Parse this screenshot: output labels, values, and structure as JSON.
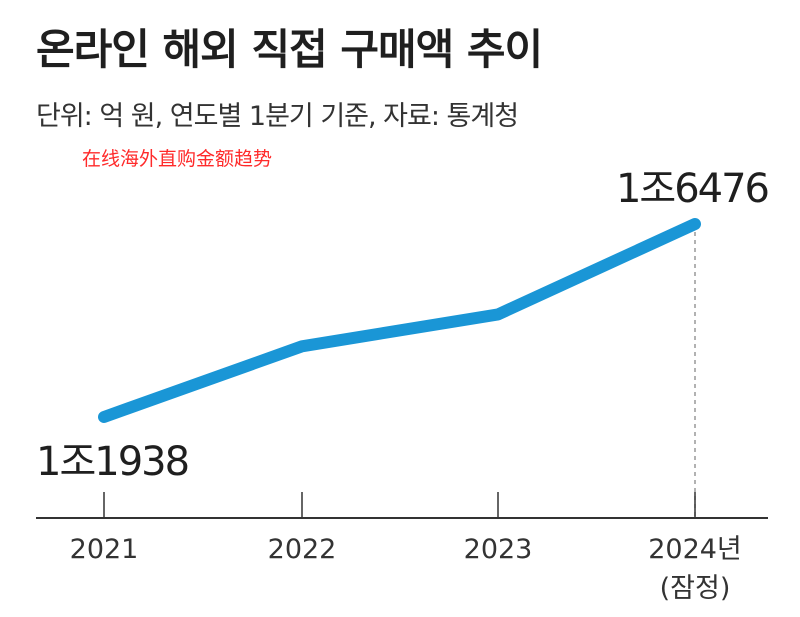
{
  "title": "온라인 해외 직접 구매액 추이",
  "subtitle": "단위: 억 원, 연도별 1분기 기준, 자료: 통계청",
  "annotation": "在线海外直购金额趋势",
  "colors": {
    "line": "#1a96d6",
    "axis": "#333333",
    "dashed": "#999999",
    "annotation": "#ff2a2a"
  },
  "chart_data": {
    "type": "line",
    "categories": [
      "2021",
      "2022",
      "2023",
      "2024년"
    ],
    "category_sublabels": [
      "",
      "",
      "",
      "(잠정)"
    ],
    "values": [
      11938,
      13600,
      14350,
      16476
    ],
    "data_labels": [
      {
        "index": 0,
        "text": "1조1938"
      },
      {
        "index": 3,
        "text": "1조6476"
      }
    ],
    "grid": false,
    "dashed_guide_index": 3
  }
}
